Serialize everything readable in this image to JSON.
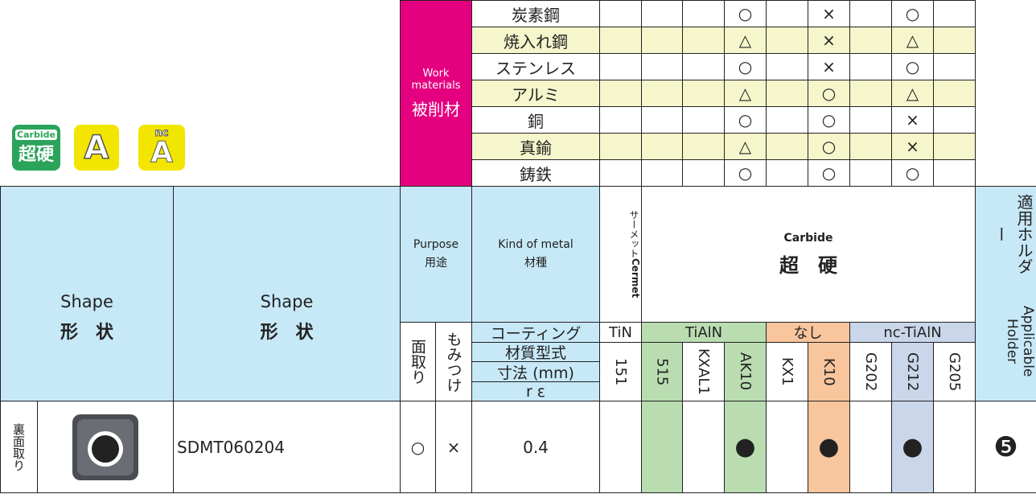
{
  "badges": {
    "carbide_en": "Carbide",
    "carbide_ja": "超硬",
    "a": "A",
    "nc": "nc",
    "nc_a": "A"
  },
  "work_materials": {
    "label_en": "Work materials",
    "label_ja": "被削材",
    "rows": [
      {
        "name": "炭素鋼",
        "marks": [
          null,
          null,
          null,
          "○",
          null,
          "×",
          null,
          "○",
          null
        ]
      },
      {
        "name": "焼入れ鋼",
        "marks": [
          null,
          null,
          null,
          "△",
          null,
          "×",
          null,
          "△",
          null
        ]
      },
      {
        "name": "ステンレス",
        "marks": [
          null,
          null,
          null,
          "○",
          null,
          "×",
          null,
          "○",
          null
        ]
      },
      {
        "name": "アルミ",
        "marks": [
          null,
          null,
          null,
          "△",
          null,
          "○",
          null,
          "△",
          null
        ]
      },
      {
        "name": "銅",
        "marks": [
          null,
          null,
          null,
          "○",
          null,
          "○",
          null,
          "×",
          null
        ]
      },
      {
        "name": "真鍮",
        "marks": [
          null,
          null,
          null,
          "△",
          null,
          "○",
          null,
          "×",
          null
        ]
      },
      {
        "name": "鋳鉄",
        "marks": [
          null,
          null,
          null,
          "○",
          null,
          "○",
          null,
          "○",
          null
        ]
      }
    ]
  },
  "header": {
    "shape_en": "Shape",
    "shape_ja": "形　状",
    "shape2_en": "Shape",
    "shape2_ja": "形　状",
    "purpose_en": "Purpose",
    "purpose_ja": "用途",
    "metal_en": "Kind of metal",
    "metal_ja": "材種",
    "cermet_en": "Cermet",
    "cermet_ja": "サーメット",
    "carbide_en": "Carbide",
    "carbide_ja": "超　硬",
    "holder_ja": "適用ホルダー",
    "holder_en": "Applicable Holder",
    "chamfer": "面取り",
    "countersink": "もみつけ",
    "coating": "コーティング",
    "grade": "材質型式",
    "size": "寸法 (mm)",
    "radius": "r ε",
    "coatings": [
      {
        "name": "TiN",
        "grades": [
          "151"
        ]
      },
      {
        "name": "TiAlN",
        "grades": [
          "515",
          "KXAL1",
          "AK10"
        ]
      },
      {
        "name": "なし",
        "grades": [
          "KX1",
          "K10"
        ]
      },
      {
        "name": "nc-TiAlN",
        "grades": [
          "G202",
          "G212",
          "G205"
        ]
      }
    ]
  },
  "rows": [
    {
      "note": "裏面取り",
      "model": "SDMT060204",
      "chamfer": "○",
      "countersink": "×",
      "radius": 0.4,
      "grades": [
        null,
        null,
        null,
        "●",
        null,
        "●",
        null,
        "●",
        null
      ],
      "holder": "❺"
    }
  ]
}
